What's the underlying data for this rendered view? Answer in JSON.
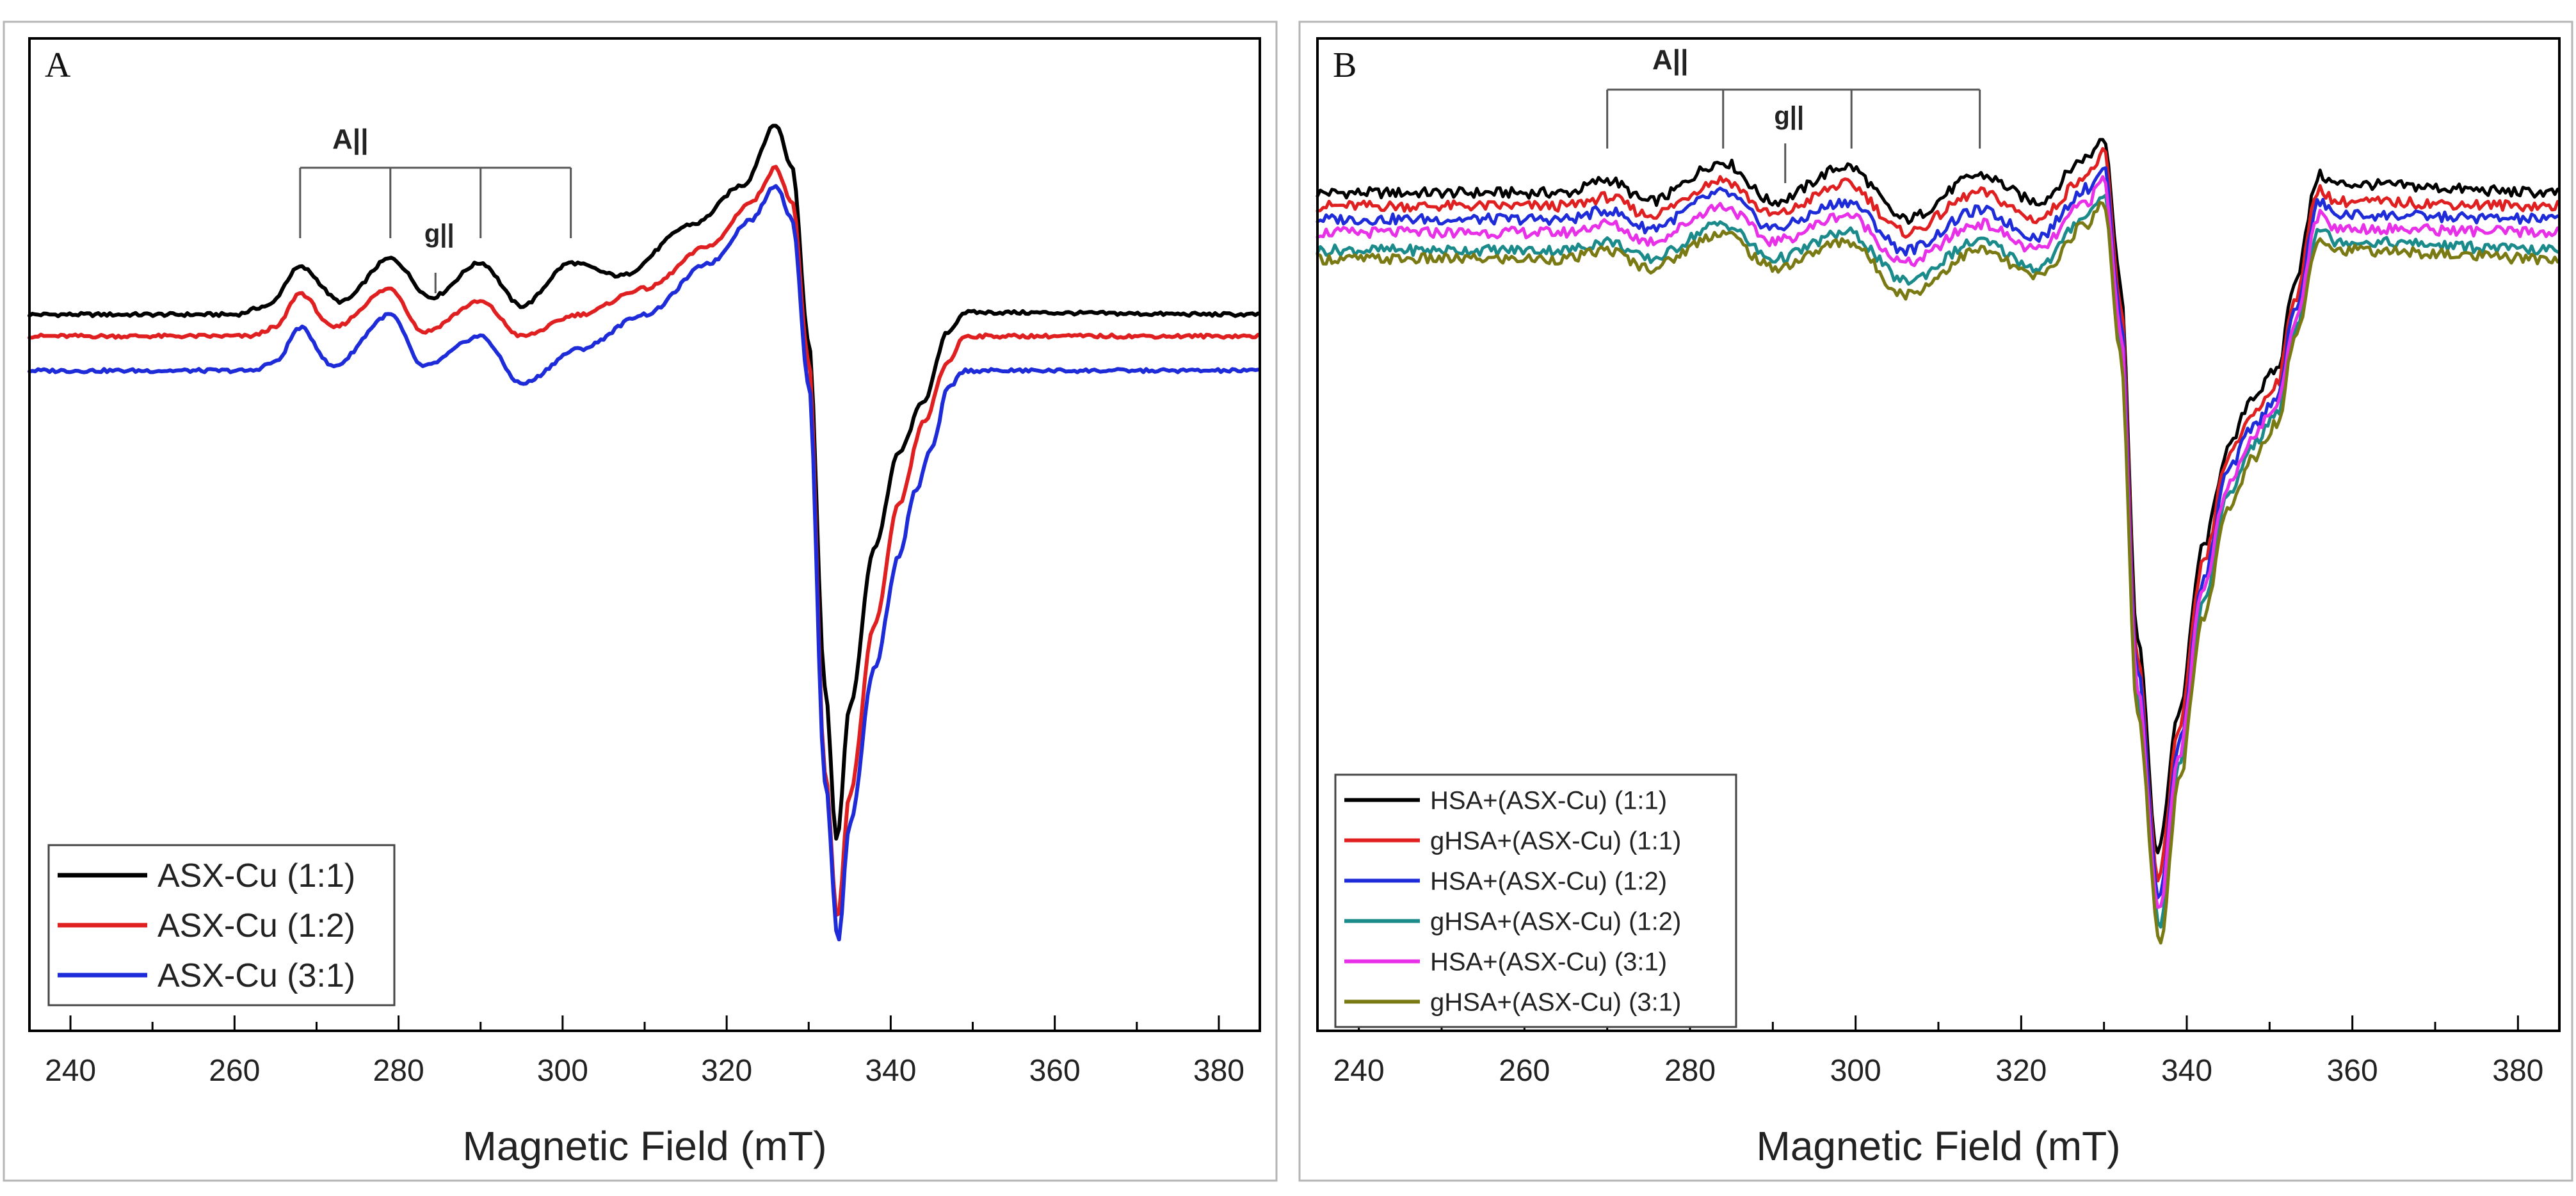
{
  "chart_data": [
    {
      "panel": "A",
      "type": "line",
      "xlabel": "Magnetic Field (mT)",
      "ylabel": "",
      "xlim": [
        235,
        385
      ],
      "x_ticks": [
        240,
        260,
        280,
        300,
        320,
        340,
        360,
        380
      ],
      "grid": false,
      "legend_position": "bottom-left",
      "annotations": {
        "a_parallel": "A||",
        "g_parallel": "g||"
      },
      "series": [
        {
          "name": "ASX-Cu (1:1)",
          "color": "#000000",
          "points": [
            [
              235,
              0.36
            ],
            [
              260,
              0.36
            ],
            [
              264,
              0.38
            ],
            [
              268,
              0.47
            ],
            [
              273,
              0.39
            ],
            [
              279,
              0.49
            ],
            [
              284,
              0.4
            ],
            [
              290,
              0.48
            ],
            [
              295,
              0.38
            ],
            [
              301,
              0.48
            ],
            [
              307,
              0.45
            ],
            [
              316,
              0.57
            ],
            [
              322,
              0.66
            ],
            [
              326,
              0.8
            ],
            [
              328,
              0.7
            ],
            [
              330,
              0.3
            ],
            [
              332,
              -0.5
            ],
            [
              333.4,
              -0.86
            ],
            [
              335,
              -0.55
            ],
            [
              338,
              -0.18
            ],
            [
              341,
              0.04
            ],
            [
              344,
              0.16
            ],
            [
              347,
              0.32
            ],
            [
              349,
              0.365
            ],
            [
              385,
              0.36
            ]
          ]
        },
        {
          "name": "ASX-Cu (1:2)",
          "color": "#e02020",
          "points": [
            [
              235,
              0.31
            ],
            [
              262,
              0.31
            ],
            [
              265,
              0.33
            ],
            [
              268,
              0.41
            ],
            [
              272,
              0.33
            ],
            [
              279,
              0.42
            ],
            [
              283,
              0.32
            ],
            [
              290,
              0.39
            ],
            [
              295,
              0.31
            ],
            [
              302,
              0.36
            ],
            [
              310,
              0.42
            ],
            [
              318,
              0.52
            ],
            [
              323,
              0.62
            ],
            [
              326,
              0.7
            ],
            [
              328,
              0.62
            ],
            [
              330,
              0.25
            ],
            [
              332,
              -0.7
            ],
            [
              333.5,
              -1.04
            ],
            [
              335,
              -0.75
            ],
            [
              338,
              -0.36
            ],
            [
              341,
              -0.08
            ],
            [
              344,
              0.11
            ],
            [
              347,
              0.25
            ],
            [
              349,
              0.31
            ],
            [
              385,
              0.31
            ]
          ]
        },
        {
          "name": "ASX-Cu (3:1)",
          "color": "#1e2bd8",
          "points": [
            [
              235,
              0.23
            ],
            [
              262,
              0.23
            ],
            [
              265,
              0.25
            ],
            [
              268,
              0.33
            ],
            [
              272,
              0.24
            ],
            [
              279,
              0.36
            ],
            [
              283,
              0.24
            ],
            [
              290,
              0.31
            ],
            [
              295,
              0.2
            ],
            [
              302,
              0.28
            ],
            [
              310,
              0.36
            ],
            [
              318,
              0.48
            ],
            [
              323,
              0.58
            ],
            [
              326,
              0.66
            ],
            [
              328,
              0.58
            ],
            [
              330,
              0.2
            ],
            [
              332,
              -0.72
            ],
            [
              333.6,
              -1.09
            ],
            [
              335,
              -0.82
            ],
            [
              338,
              -0.46
            ],
            [
              341,
              -0.2
            ],
            [
              343,
              -0.05
            ],
            [
              345,
              0.05
            ],
            [
              347,
              0.19
            ],
            [
              349,
              0.23
            ],
            [
              385,
              0.23
            ]
          ]
        }
      ]
    },
    {
      "panel": "B",
      "type": "line",
      "xlabel": "Magnetic Field (mT)",
      "ylabel": "",
      "xlim": [
        235,
        385
      ],
      "x_ticks": [
        240,
        260,
        280,
        300,
        320,
        340,
        360,
        380
      ],
      "grid": false,
      "legend_position": "bottom-left",
      "annotations": {
        "a_parallel": "A||",
        "g_parallel": "g||"
      },
      "series": [
        {
          "name": "HSA+(ASX-Cu) (1:1)",
          "color": "#000000",
          "points": [
            [
              235,
              0.6
            ],
            [
              265,
              0.6
            ],
            [
              270,
              0.63
            ],
            [
              275,
              0.58
            ],
            [
              284,
              0.67
            ],
            [
              290,
              0.58
            ],
            [
              299,
              0.66
            ],
            [
              306,
              0.54
            ],
            [
              315,
              0.64
            ],
            [
              322,
              0.58
            ],
            [
              328,
              0.68
            ],
            [
              330,
              0.73
            ],
            [
              332,
              0.4
            ],
            [
              334,
              -0.4
            ],
            [
              336.5,
              -0.9
            ],
            [
              339,
              -0.58
            ],
            [
              342,
              -0.2
            ],
            [
              345,
              0.02
            ],
            [
              348,
              0.14
            ],
            [
              351,
              0.2
            ],
            [
              353,
              0.4
            ],
            [
              356,
              0.64
            ],
            [
              358,
              0.62
            ],
            [
              385,
              0.6
            ]
          ]
        },
        {
          "name": "gHSA+(ASX-Cu) (1:1)",
          "color": "#e02020",
          "points": [
            [
              235,
              0.57
            ],
            [
              265,
              0.57
            ],
            [
              270,
              0.59
            ],
            [
              275,
              0.55
            ],
            [
              284,
              0.63
            ],
            [
              290,
              0.55
            ],
            [
              299,
              0.62
            ],
            [
              306,
              0.51
            ],
            [
              315,
              0.6
            ],
            [
              322,
              0.54
            ],
            [
              328,
              0.64
            ],
            [
              330,
              0.69
            ],
            [
              332,
              0.35
            ],
            [
              334,
              -0.45
            ],
            [
              336.6,
              -0.96
            ],
            [
              339,
              -0.62
            ],
            [
              342,
              -0.24
            ],
            [
              345,
              0.0
            ],
            [
              348,
              0.1
            ],
            [
              351,
              0.17
            ],
            [
              353,
              0.36
            ],
            [
              356,
              0.61
            ],
            [
              358,
              0.58
            ],
            [
              385,
              0.57
            ]
          ]
        },
        {
          "name": "HSA+(ASX-Cu) (1:2)",
          "color": "#1e2bd8",
          "points": [
            [
              235,
              0.54
            ],
            [
              265,
              0.54
            ],
            [
              270,
              0.56
            ],
            [
              275,
              0.52
            ],
            [
              284,
              0.6
            ],
            [
              290,
              0.52
            ],
            [
              299,
              0.58
            ],
            [
              306,
              0.47
            ],
            [
              315,
              0.56
            ],
            [
              322,
              0.5
            ],
            [
              328,
              0.61
            ],
            [
              330,
              0.66
            ],
            [
              332,
              0.32
            ],
            [
              334,
              -0.48
            ],
            [
              336.7,
              -1.0
            ],
            [
              339,
              -0.65
            ],
            [
              342,
              -0.28
            ],
            [
              345,
              -0.03
            ],
            [
              348,
              0.07
            ],
            [
              351,
              0.14
            ],
            [
              353,
              0.33
            ],
            [
              356,
              0.58
            ],
            [
              358,
              0.55
            ],
            [
              385,
              0.54
            ]
          ]
        },
        {
          "name": "gHSA+(ASX-Cu) (1:2)",
          "color": "#1a8a8a",
          "points": [
            [
              235,
              0.47
            ],
            [
              265,
              0.47
            ],
            [
              270,
              0.49
            ],
            [
              275,
              0.45
            ],
            [
              284,
              0.53
            ],
            [
              290,
              0.45
            ],
            [
              299,
              0.51
            ],
            [
              306,
              0.4
            ],
            [
              315,
              0.49
            ],
            [
              322,
              0.43
            ],
            [
              328,
              0.55
            ],
            [
              330,
              0.6
            ],
            [
              332,
              0.26
            ],
            [
              334,
              -0.55
            ],
            [
              336.8,
              -1.06
            ],
            [
              339,
              -0.7
            ],
            [
              342,
              -0.33
            ],
            [
              345,
              -0.09
            ],
            [
              348,
              0.03
            ],
            [
              351,
              0.1
            ],
            [
              353,
              0.29
            ],
            [
              356,
              0.52
            ],
            [
              358,
              0.49
            ],
            [
              385,
              0.47
            ]
          ]
        },
        {
          "name": "HSA+(ASX-Cu) (3:1)",
          "color": "#e830e8",
          "points": [
            [
              235,
              0.51
            ],
            [
              265,
              0.51
            ],
            [
              270,
              0.53
            ],
            [
              275,
              0.49
            ],
            [
              284,
              0.57
            ],
            [
              290,
              0.49
            ],
            [
              299,
              0.55
            ],
            [
              306,
              0.44
            ],
            [
              315,
              0.53
            ],
            [
              322,
              0.47
            ],
            [
              328,
              0.58
            ],
            [
              330,
              0.63
            ],
            [
              332,
              0.29
            ],
            [
              334,
              -0.52
            ],
            [
              336.7,
              -1.03
            ],
            [
              339,
              -0.68
            ],
            [
              342,
              -0.3
            ],
            [
              345,
              -0.06
            ],
            [
              348,
              0.05
            ],
            [
              351,
              0.12
            ],
            [
              353,
              0.31
            ],
            [
              356,
              0.55
            ],
            [
              358,
              0.52
            ],
            [
              385,
              0.51
            ]
          ]
        },
        {
          "name": "gHSA+(ASX-Cu) (3:1)",
          "color": "#7a7a14",
          "points": [
            [
              235,
              0.45
            ],
            [
              265,
              0.45
            ],
            [
              270,
              0.47
            ],
            [
              275,
              0.43
            ],
            [
              284,
              0.51
            ],
            [
              290,
              0.43
            ],
            [
              299,
              0.49
            ],
            [
              306,
              0.37
            ],
            [
              315,
              0.47
            ],
            [
              322,
              0.41
            ],
            [
              328,
              0.53
            ],
            [
              330,
              0.58
            ],
            [
              332,
              0.24
            ],
            [
              334,
              -0.58
            ],
            [
              336.8,
              -1.1
            ],
            [
              339,
              -0.74
            ],
            [
              342,
              -0.36
            ],
            [
              345,
              -0.12
            ],
            [
              348,
              0.0
            ],
            [
              351,
              0.08
            ],
            [
              353,
              0.27
            ],
            [
              356,
              0.5
            ],
            [
              358,
              0.47
            ],
            [
              385,
              0.45
            ]
          ]
        }
      ]
    }
  ]
}
